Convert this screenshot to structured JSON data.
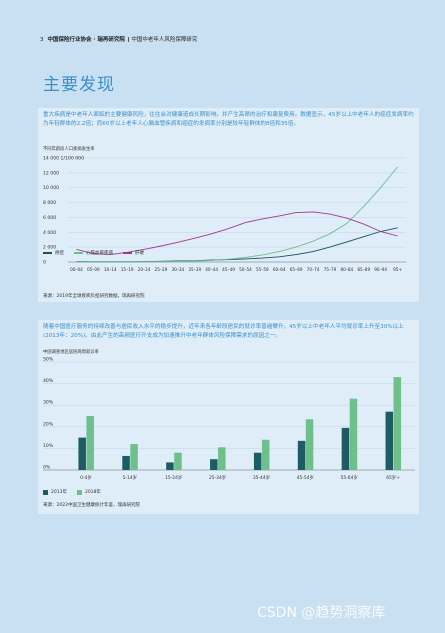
{
  "header": {
    "page_number": "3",
    "org": "中国保险行业协会 · 瑞再研究院",
    "report": "中国中老年人风险保障研究"
  },
  "section_title": "主要发现",
  "finding1": {
    "text": "重大疾病是中老年人面临的主要健康风险，往往会对健康造成长期影响，并产生高昂的治疗和康复费用。数据显示，45岁以上中老年人的癌症发病率约为年轻群体的2.2倍；而60岁以上老年人心脑血管疾病和癌症的发病率分别是较年轻群体的8倍和35倍。",
    "chart_caption": "不同年龄段人口疾病发生率",
    "source": "来源：2019年全球疾病负担研究数据，瑞再研究院"
  },
  "finding2": {
    "text": "随着中国医疗服务的持续改善与居民收入水平的稳步提升，近年来各年龄段居民的就诊率普遍攀升，45岁以上中老年人平均就诊率上升至30%以上(2013年：20%)。由此产生的高频医疗开支成为加速推升中老年群体风险保障需求的原因之一。",
    "chart_caption": "中国调查地区居民两周就诊率",
    "source": "来源：2022中国卫生健康统计年鉴，瑞再研究院"
  },
  "chart_data": [
    {
      "type": "line",
      "title": "不同年龄段人口疾病发生率",
      "ylabel": "14 000   1/100 000",
      "ylim": [
        0,
        14000
      ],
      "yticks": [
        "0",
        "2 000",
        "4 000",
        "6 000",
        "8 000",
        "10 000",
        "12 000",
        "14 000"
      ],
      "categories": [
        "00–04",
        "05–09",
        "10–14",
        "15–19",
        "20–24",
        "25–29",
        "30–34",
        "35–39",
        "40–44",
        "45–49",
        "50–54",
        "55–59",
        "60–64",
        "65–69",
        "70–74",
        "75–79",
        "80–84",
        "85–89",
        "90–94",
        "95+"
      ],
      "series": [
        {
          "name": "癌症",
          "color": "#1d4f5e",
          "values": [
            60,
            40,
            35,
            45,
            60,
            90,
            130,
            180,
            250,
            330,
            420,
            530,
            700,
            1000,
            1400,
            2000,
            2700,
            3400,
            4100,
            4600
          ]
        },
        {
          "name": "心脑血管疾病",
          "color": "#6fbf8c",
          "values": [
            30,
            20,
            20,
            25,
            35,
            50,
            80,
            130,
            220,
            380,
            620,
            950,
            1400,
            2000,
            2800,
            3800,
            5200,
            7500,
            10000,
            12800
          ]
        },
        {
          "name": "肝硬",
          "color": "#a23a8a",
          "values": [
            1700,
            1150,
            1000,
            1300,
            1700,
            2150,
            2650,
            3200,
            3800,
            4500,
            5300,
            5800,
            6200,
            6650,
            6750,
            6450,
            5900,
            5100,
            4100,
            3500
          ]
        }
      ],
      "legend": "bottom-left"
    },
    {
      "type": "bar",
      "title": "中国调查地区居民两周就诊率",
      "ylim": [
        0,
        50
      ],
      "yticks": [
        "0%",
        "10%",
        "20%",
        "30%",
        "40%",
        "50%"
      ],
      "categories": [
        "0-4岁",
        "5-14岁",
        "15-24岁",
        "25-34岁",
        "35-44岁",
        "45-54岁",
        "55-64岁",
        "65岁+"
      ],
      "series": [
        {
          "name": "2013年",
          "color": "#1d5c62",
          "values": [
            15,
            6.5,
            3.5,
            5,
            8,
            13.5,
            19.5,
            27
          ]
        },
        {
          "name": "2018年",
          "color": "#6fbf8c",
          "values": [
            25,
            12,
            8,
            10.5,
            14,
            23.5,
            33,
            43
          ]
        }
      ],
      "legend": "bottom-left"
    }
  ],
  "watermark": "CSDN @趋势洞察库"
}
